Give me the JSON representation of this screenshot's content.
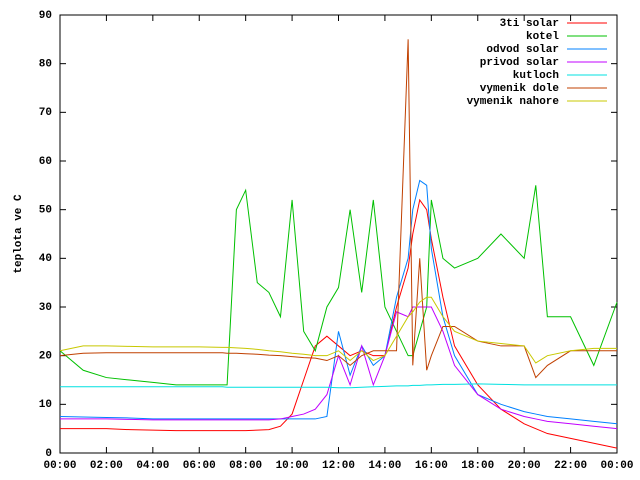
{
  "chart_data": {
    "type": "line",
    "ylabel": "teplota ve C",
    "x": [
      0,
      1,
      2,
      3,
      4,
      5,
      6,
      7,
      7.2,
      7.6,
      8,
      8.5,
      9,
      9.5,
      10,
      10.5,
      11,
      11.5,
      12,
      12.5,
      13,
      13.5,
      14,
      14.5,
      15,
      15.2,
      15.5,
      15.8,
      16,
      16.5,
      17,
      18,
      19,
      20,
      20.5,
      21,
      22,
      23,
      24
    ],
    "xlim": [
      0,
      24
    ],
    "xticks": [
      {
        "value": 0,
        "label": "00:00"
      },
      {
        "value": 2,
        "label": "02:00"
      },
      {
        "value": 4,
        "label": "04:00"
      },
      {
        "value": 6,
        "label": "06:00"
      },
      {
        "value": 8,
        "label": "08:00"
      },
      {
        "value": 10,
        "label": "10:00"
      },
      {
        "value": 12,
        "label": "12:00"
      },
      {
        "value": 14,
        "label": "14:00"
      },
      {
        "value": 16,
        "label": "16:00"
      },
      {
        "value": 18,
        "label": "18:00"
      },
      {
        "value": 20,
        "label": "20:00"
      },
      {
        "value": 22,
        "label": "22:00"
      },
      {
        "value": 24,
        "label": "00:00"
      }
    ],
    "ylim": [
      0,
      90
    ],
    "yticks": [
      0,
      10,
      20,
      30,
      40,
      50,
      60,
      70,
      80,
      90
    ],
    "legend": "top-right",
    "series": [
      {
        "name": "3ti solar",
        "color": "#ff0000",
        "values": [
          5,
          5,
          5,
          4.8,
          4.7,
          4.6,
          4.6,
          4.6,
          4.6,
          4.6,
          4.6,
          4.7,
          4.8,
          5.5,
          8,
          15,
          22,
          24,
          22,
          20,
          21,
          20,
          20,
          30,
          38,
          45,
          52,
          50,
          44,
          32,
          22,
          14,
          9,
          6,
          5,
          4,
          3,
          2,
          1
        ]
      },
      {
        "name": "kotel",
        "color": "#00c000",
        "values": [
          21,
          17,
          15.5,
          15,
          14.5,
          14,
          14,
          14,
          14,
          50,
          54,
          35,
          33,
          28,
          52,
          25,
          21,
          30,
          34,
          50,
          33,
          52,
          30,
          25,
          20,
          20,
          25,
          30,
          52,
          40,
          38,
          40,
          45,
          40,
          55,
          28,
          28,
          18,
          31
        ]
      },
      {
        "name": "odvod solar",
        "color": "#0080ff",
        "values": [
          7.5,
          7.4,
          7.3,
          7.2,
          7,
          7,
          7,
          7,
          7,
          7,
          7,
          7,
          7,
          7,
          7,
          7,
          7,
          7.5,
          25,
          16,
          22,
          18,
          20,
          32,
          40,
          50,
          56,
          55,
          42,
          28,
          20,
          12,
          10,
          8.5,
          8,
          7.5,
          7,
          6.5,
          6
        ]
      },
      {
        "name": "privod solar",
        "color": "#c000ff",
        "values": [
          7,
          7,
          7,
          6.9,
          6.8,
          6.8,
          6.8,
          6.8,
          6.8,
          6.8,
          6.8,
          6.8,
          6.8,
          7,
          7.5,
          8,
          9,
          12,
          20,
          14,
          22,
          14,
          20,
          29,
          28,
          30,
          30,
          30,
          30,
          25,
          18,
          12,
          9,
          7.5,
          7,
          6.5,
          6,
          5.5,
          5
        ]
      },
      {
        "name": "kutloch",
        "color": "#00e0e0",
        "values": [
          13.6,
          13.6,
          13.6,
          13.6,
          13.6,
          13.6,
          13.6,
          13.6,
          13.5,
          13.5,
          13.5,
          13.5,
          13.5,
          13.5,
          13.5,
          13.5,
          13.5,
          13.5,
          13.4,
          13.4,
          13.5,
          13.6,
          13.7,
          13.8,
          13.8,
          13.9,
          13.9,
          14,
          14,
          14.1,
          14.1,
          14.2,
          14.1,
          14,
          14,
          14,
          14,
          14,
          14
        ]
      },
      {
        "name": "vymenik dole",
        "color": "#c04000",
        "values": [
          20,
          20.5,
          20.6,
          20.6,
          20.6,
          20.6,
          20.6,
          20.6,
          20.5,
          20.5,
          20.4,
          20.3,
          20.1,
          20,
          19.8,
          19.6,
          19.5,
          19,
          20,
          18,
          20,
          21,
          21,
          21,
          85,
          18,
          40,
          17,
          20,
          26,
          26,
          23,
          22,
          22,
          15.5,
          18,
          21,
          21,
          21
        ]
      },
      {
        "name": "vymenik nahore",
        "color": "#c8c800",
        "values": [
          21,
          22,
          22,
          21.9,
          21.8,
          21.8,
          21.8,
          21.7,
          21.7,
          21.6,
          21.5,
          21.3,
          21,
          20.8,
          20.5,
          20.3,
          20,
          20,
          21,
          19,
          21,
          19,
          20,
          24,
          28,
          29,
          31,
          32,
          32,
          28,
          25,
          23,
          22.5,
          22,
          18.5,
          20,
          21,
          21.5,
          21.5
        ]
      }
    ]
  }
}
